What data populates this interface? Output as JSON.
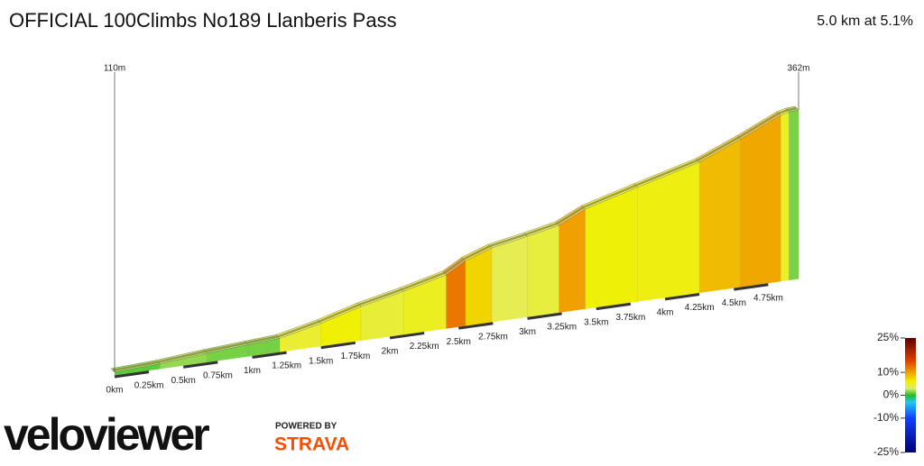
{
  "chart_data": {
    "type": "area",
    "title": "OFFICIAL 100Climbs No189 Llanberis Pass",
    "subtitle": "5.0 km at 5.1%",
    "x": [
      0,
      0.33,
      0.67,
      0.97,
      1.2,
      1.5,
      1.79,
      2.1,
      2.41,
      2.55,
      2.74,
      3.0,
      3.23,
      3.42,
      3.8,
      4.25,
      4.55,
      4.84,
      4.9,
      4.97
    ],
    "series": [
      {
        "values": [
          110,
          113,
          119,
          123,
          126,
          140,
          157,
          171,
          187,
          204,
          218,
          228,
          238,
          257,
          279,
          304,
          330,
          358,
          361,
          362
        ]
      }
    ],
    "xlim": [
      0,
      4.97
    ],
    "ylim": [
      103,
      362
    ],
    "xticks": [
      {
        "value": 0,
        "label": "0km"
      },
      {
        "value": 0.25,
        "label": "0.25km"
      },
      {
        "value": 0.5,
        "label": "0.5km"
      },
      {
        "value": 0.75,
        "label": "0.75km"
      },
      {
        "value": 1,
        "label": "1km"
      },
      {
        "value": 1.25,
        "label": "1.25km"
      },
      {
        "value": 1.5,
        "label": "1.5km"
      },
      {
        "value": 1.75,
        "label": "1.75km"
      },
      {
        "value": 2,
        "label": "2km"
      },
      {
        "value": 2.25,
        "label": "2.25km"
      },
      {
        "value": 2.5,
        "label": "2.5km"
      },
      {
        "value": 2.75,
        "label": "2.75km"
      },
      {
        "value": 3,
        "label": "3km"
      },
      {
        "value": 3.25,
        "label": "3.25km"
      },
      {
        "value": 3.5,
        "label": "3.5km"
      },
      {
        "value": 3.75,
        "label": "3.75km"
      },
      {
        "value": 4,
        "label": "4km"
      },
      {
        "value": 4.25,
        "label": "4.25km"
      },
      {
        "value": 4.5,
        "label": "4.5km"
      },
      {
        "value": 4.75,
        "label": "4.75km"
      }
    ],
    "point_labels": [
      {
        "x": 0,
        "value": 110,
        "label": "110m"
      },
      {
        "x": 4.97,
        "value": 362,
        "label": "362m"
      }
    ],
    "colorbar": {
      "lim": [
        -25,
        25
      ],
      "ticks": [
        {
          "value": 25,
          "label": "25%"
        },
        {
          "value": 10,
          "label": "10%"
        },
        {
          "value": 0,
          "label": "0%"
        },
        {
          "value": -10,
          "label": "-10%"
        },
        {
          "value": -25,
          "label": "-25%"
        }
      ],
      "stops": [
        {
          "value": -25,
          "color": "#000070"
        },
        {
          "value": -10,
          "color": "#1040ff"
        },
        {
          "value": -3,
          "color": "#20c8f0"
        },
        {
          "value": 0,
          "color": "#22bb22"
        },
        {
          "value": 3,
          "color": "#e0ec70"
        },
        {
          "value": 6,
          "color": "#f0f000"
        },
        {
          "value": 10,
          "color": "#f0a000"
        },
        {
          "value": 15,
          "color": "#e04000"
        },
        {
          "value": 25,
          "color": "#600000"
        }
      ]
    }
  },
  "branding": {
    "logo": "veloviewer",
    "powered_by": "POWERED BY",
    "strava": "STRAVA"
  }
}
